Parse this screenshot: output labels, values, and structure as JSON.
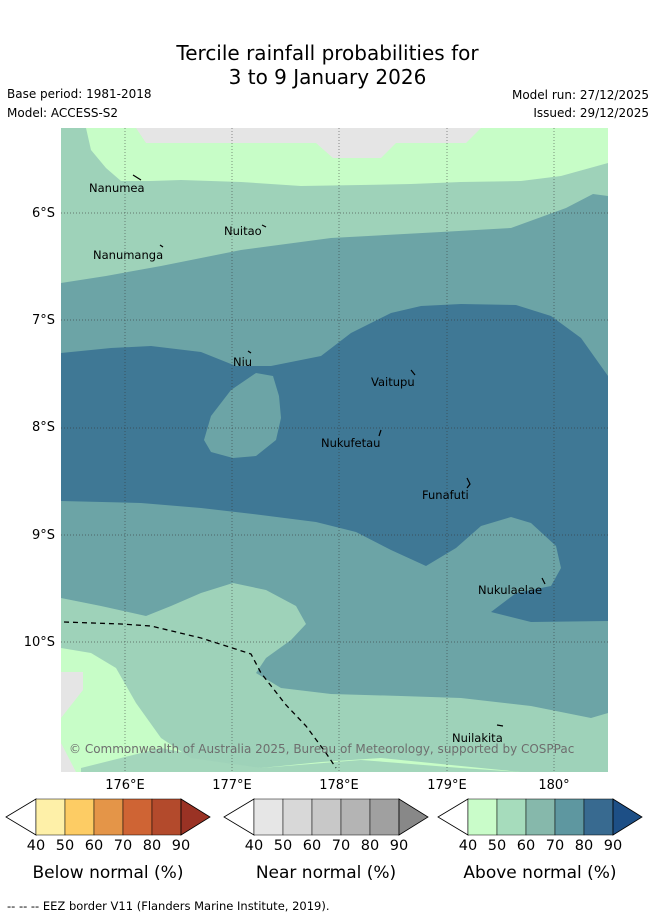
{
  "title": {
    "line1": "Tercile rainfall probabilities for",
    "line2": "3 to 9 January 2026"
  },
  "info": {
    "base_period": "Base period: 1981-2018",
    "model": "Model: ACCESS-S2",
    "model_run": "Model run: 27/12/2025",
    "issued": "Issued: 29/12/2025"
  },
  "axes": {
    "lat_labels": [
      "6°S",
      "7°S",
      "8°S",
      "9°S",
      "10°S"
    ],
    "lon_labels": [
      "176°E",
      "177°E",
      "178°E",
      "179°E",
      "180°"
    ]
  },
  "places": [
    {
      "name": "Nanumea"
    },
    {
      "name": "Nuitao"
    },
    {
      "name": "Nanumanga"
    },
    {
      "name": "Niu"
    },
    {
      "name": "Vaitupu"
    },
    {
      "name": "Nukufetau"
    },
    {
      "name": "Funafuti"
    },
    {
      "name": "Nukulaelae"
    },
    {
      "name": "Nuilakita"
    }
  ],
  "copyright": "© Commonwealth of Australia 2025, Bureau of Meteorology, supported by COSPPac",
  "colorbars": [
    {
      "title": "Below normal (%)",
      "ticks": [
        "40",
        "50",
        "60",
        "70",
        "80",
        "90"
      ],
      "colors": [
        "#ffffff",
        "#fef0a8",
        "#fdcc64",
        "#e49548",
        "#cf6434",
        "#b34a2c",
        "#9a3224"
      ]
    },
    {
      "title": "Near normal (%)",
      "ticks": [
        "40",
        "50",
        "60",
        "70",
        "80",
        "90"
      ],
      "colors": [
        "#ffffff",
        "#e6e6e6",
        "#d8d8d8",
        "#c8c8c8",
        "#b4b4b4",
        "#a0a0a0",
        "#888888"
      ]
    },
    {
      "title": "Above normal (%)",
      "ticks": [
        "40",
        "50",
        "60",
        "70",
        "80",
        "90"
      ],
      "colors": [
        "#ffffff",
        "#c9fcc9",
        "#a6dcbc",
        "#86b8ab",
        "#5e97a0",
        "#386a90",
        "#1d4f86"
      ]
    }
  ],
  "legend": {
    "eez": "EEZ border V11 (Flanders Marine Institute, 2019)."
  },
  "map_colors": {
    "above_40": "#c7fdc7",
    "above_50": "#9ed2b9",
    "above_60": "#6ca4a6",
    "above_70": "#3f7895",
    "near_40": "#e5e5e5"
  }
}
